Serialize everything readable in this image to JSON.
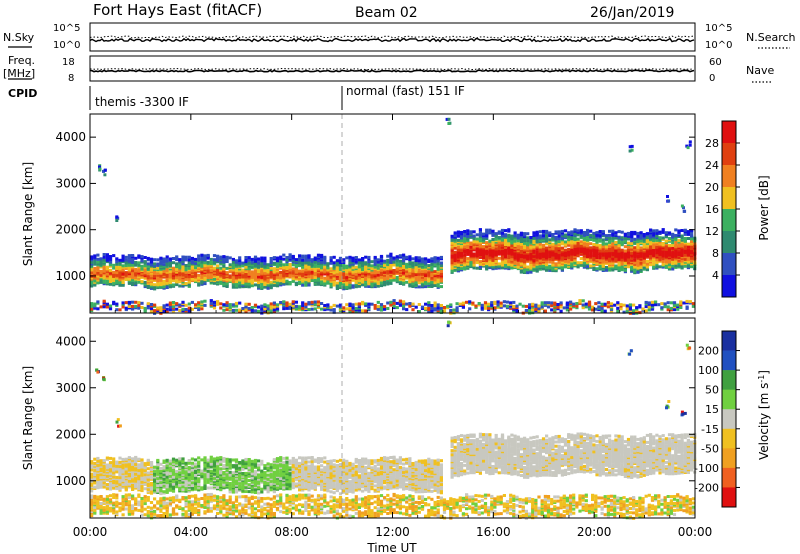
{
  "header": {
    "station": "Fort Hays East (fitACF)",
    "beam": "Beam 02",
    "date": "26/Jan/2019"
  },
  "top_panels": {
    "nsky_label": "N.Sky",
    "nsky_ticks": [
      "10^5",
      "10^0"
    ],
    "nsearch_label": "N.Search",
    "nsearch_ticks": [
      "10^5",
      "10^0"
    ],
    "freq_label_1": "Freq.",
    "freq_label_2": "[MHz]",
    "freq_ticks": [
      "18",
      "8"
    ],
    "nave_label": "Nave",
    "nave_ticks": [
      "60",
      "0"
    ],
    "cpid_label": "CPID",
    "cpid_segments": [
      {
        "name": "themis -3300 IF",
        "start_hour": 0
      },
      {
        "name": "normal (fast) 151 IF",
        "start_hour": 10
      }
    ]
  },
  "x_axis": {
    "label": "Time UT",
    "ticks": [
      "00:00",
      "04:00",
      "08:00",
      "12:00",
      "16:00",
      "20:00",
      "00:00"
    ]
  },
  "y_axis": {
    "label": "Slant Range [km]",
    "ticks": [
      "1000",
      "2000",
      "3000",
      "4000"
    ]
  },
  "power_colorbar": {
    "label": "Power [dB]",
    "ticks": [
      "4",
      "8",
      "12",
      "16",
      "20",
      "24",
      "28"
    ],
    "colors": [
      "#1010e0",
      "#3050c0",
      "#2f8a70",
      "#3cb060",
      "#f0c020",
      "#f08020",
      "#e04010",
      "#e01010"
    ]
  },
  "velocity_colorbar": {
    "label": "Velocity [m s",
    "label_sup": "-1",
    "label_end": "]",
    "ticks": [
      "200",
      "100",
      "50",
      "15",
      "-15",
      "-50",
      "-100",
      "-200"
    ],
    "colors": [
      "#1a30a0",
      "#2050c0",
      "#40a040",
      "#70d040",
      "#c8c8c0",
      "#f0c020",
      "#f0a020",
      "#f06020",
      "#e01010"
    ]
  },
  "chart_data": [
    {
      "type": "heatmap",
      "name": "Power",
      "x_range_hours": [
        0,
        24
      ],
      "y_range_km": [
        200,
        4500
      ],
      "bands": [
        {
          "t0": 0,
          "t1": 14,
          "r0": 750,
          "r1": 1400,
          "core": 1000,
          "kind": "power_low"
        },
        {
          "t0": 14.3,
          "t1": 24,
          "r0": 1100,
          "r1": 1950,
          "core": 1450,
          "kind": "power_high"
        },
        {
          "t0": 0,
          "t1": 24,
          "r0": 220,
          "r1": 400,
          "core": 300,
          "kind": "near_range"
        }
      ]
    },
    {
      "type": "heatmap",
      "name": "Velocity",
      "x_range_hours": [
        0,
        24
      ],
      "y_range_km": [
        200,
        4500
      ],
      "bands": [
        {
          "t0": 0,
          "t1": 14,
          "r0": 750,
          "r1": 1450,
          "core": 1050,
          "kind": "velocity_low"
        },
        {
          "t0": 14.3,
          "t1": 24,
          "r0": 1100,
          "r1": 1950,
          "core": 1450,
          "kind": "velocity_high"
        },
        {
          "t0": 0,
          "t1": 24,
          "r0": 220,
          "r1": 650,
          "core": 350,
          "kind": "near_range_vel"
        }
      ]
    }
  ]
}
